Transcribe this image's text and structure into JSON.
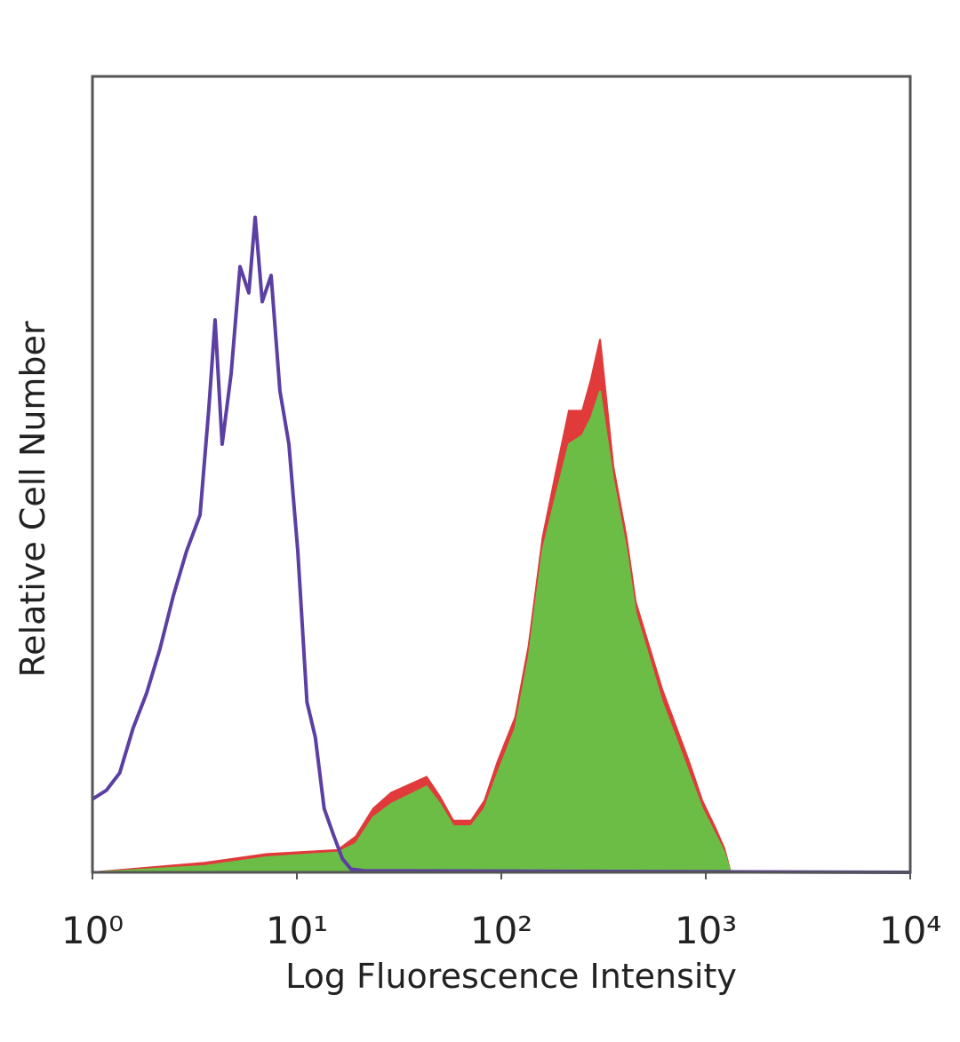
{
  "chart_data": {
    "type": "histogram-overlay",
    "x_label": "Log Fluorescence Intensity",
    "y_label": "Relative Cell Number",
    "xscale": "log",
    "xlim": [
      1,
      10000
    ],
    "ylim": [
      0,
      100
    ],
    "xticks": [
      {
        "value": 1,
        "label": "10⁰"
      },
      {
        "value": 10,
        "label": "10¹"
      },
      {
        "value": 100,
        "label": "10²"
      },
      {
        "value": 1000,
        "label": "10³"
      },
      {
        "value": 10000,
        "label": "10⁴"
      }
    ],
    "frame_color": "#555555",
    "series": [
      {
        "style": "area",
        "color": "#e03a3a",
        "x": [
          1,
          3.53,
          7.11,
          15.8,
          19.4,
          23.6,
          28.9,
          35.3,
          43.1,
          50.1,
          58.2,
          71.1,
          82.7,
          96.1,
          117,
          136,
          159,
          184,
          214,
          249,
          275,
          304,
          353,
          410,
          454,
          527,
          612,
          711,
          826,
          961,
          1117,
          1233,
          1324
        ],
        "values": [
          0,
          1.2,
          2.3,
          2.8,
          4.5,
          8,
          10,
          11,
          12,
          9.5,
          6.5,
          6.5,
          9,
          14,
          19.5,
          28.5,
          42,
          50,
          58,
          58,
          62,
          67,
          51,
          42,
          34,
          28.5,
          23,
          18.5,
          14,
          9,
          5.5,
          3,
          0
        ]
      },
      {
        "style": "area",
        "color": "#6cbd45",
        "x": [
          1,
          3.53,
          7.11,
          15.8,
          19.4,
          23.6,
          28.9,
          35.3,
          43.1,
          50.1,
          58.2,
          71.1,
          82.7,
          96.1,
          117,
          136,
          159,
          184,
          214,
          249,
          275,
          304,
          353,
          410,
          454,
          527,
          612,
          711,
          826,
          961,
          1117,
          1233,
          1324
        ],
        "values": [
          0,
          0.8,
          1.9,
          2.5,
          3.6,
          6.9,
          8.6,
          9.7,
          10.8,
          8.6,
          5.8,
          5.8,
          8,
          12.5,
          18.1,
          27,
          40.4,
          47.1,
          53.8,
          54.9,
          57.1,
          60.5,
          49.3,
          40.4,
          32.6,
          27,
          21.4,
          17,
          12.5,
          8,
          4.7,
          2.5,
          0
        ]
      },
      {
        "style": "line",
        "color": "#5b3fa3",
        "x": [
          1,
          1.17,
          1.36,
          1.58,
          1.84,
          2.14,
          2.49,
          2.89,
          3.36,
          3.71,
          3.98,
          4.31,
          4.77,
          5.27,
          5.82,
          6.25,
          6.77,
          7.48,
          8.26,
          9.14,
          10.1,
          11.2,
          12.3,
          13.6,
          15.1,
          16.7,
          18.4,
          21.4,
          10000
        ],
        "values": [
          9.2,
          10.3,
          12.5,
          18.1,
          22.5,
          28.1,
          34.8,
          40.4,
          44.9,
          58.3,
          69.4,
          53.8,
          62.7,
          76.1,
          72.8,
          82.3,
          71.7,
          75,
          60.5,
          53.8,
          40.4,
          21.4,
          17,
          8,
          4.7,
          1.7,
          0.4,
          0.2,
          0
        ]
      }
    ]
  }
}
